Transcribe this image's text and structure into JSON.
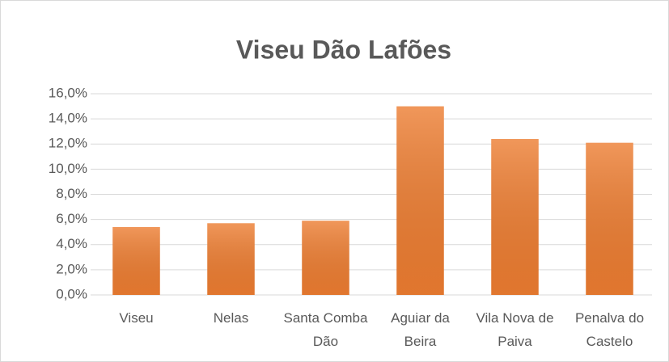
{
  "chart_data": {
    "type": "bar",
    "title": "Viseu Dão Lafões",
    "categories": [
      "Viseu",
      "Nelas",
      "Santa Comba Dão",
      "Aguiar da Beira",
      "Vila Nova de Paiva",
      "Penalva do Castelo"
    ],
    "values": [
      5.4,
      5.7,
      5.9,
      15.0,
      12.4,
      12.1
    ],
    "color": "#ed7d31",
    "ylim": [
      0,
      16
    ],
    "yticks": [
      {
        "value": 0,
        "label": "0,0%"
      },
      {
        "value": 2,
        "label": "2,0%"
      },
      {
        "value": 4,
        "label": "4,0%"
      },
      {
        "value": 6,
        "label": "6,0%"
      },
      {
        "value": 8,
        "label": "8,0%"
      },
      {
        "value": 10,
        "label": "10,0%"
      },
      {
        "value": 12,
        "label": "12,0%"
      },
      {
        "value": 14,
        "label": "14,0%"
      },
      {
        "value": 16,
        "label": "16,0%"
      }
    ],
    "grid": true
  }
}
